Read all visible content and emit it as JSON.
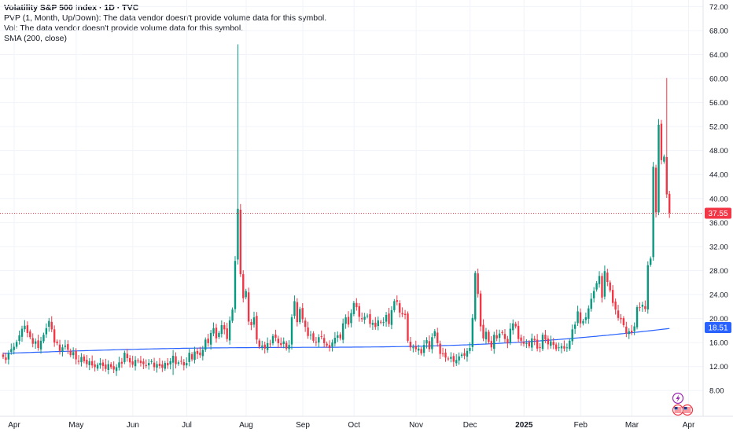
{
  "legend": {
    "title": "Volatility S&P 500 Index · 1D · TVC",
    "pvp": "PVP (1, Month, Up/Down): The data vendor doesn't provide volume data for this symbol.",
    "vol": "Vol: The data vendor doesn't provide volume data for this symbol.",
    "sma": "SMA (200, close)"
  },
  "icons": {
    "flash": "lightning-icon",
    "flags": "us-flag-icon"
  },
  "chart_data": {
    "type": "candlestick",
    "title": "Volatility S&P 500 Index · 1D · TVC",
    "y_ticks": [
      8,
      12,
      16,
      20,
      24,
      28,
      32,
      36,
      40,
      44,
      48,
      52,
      56,
      60,
      64,
      68,
      72
    ],
    "y_tick_labels": [
      "8.00",
      "12.00",
      "16.00",
      "20.00",
      "24.00",
      "28.00",
      "32.00",
      "36.00",
      "40.00",
      "44.00",
      "48.00",
      "52.00",
      "56.00",
      "60.00",
      "64.00",
      "68.00",
      "72.00"
    ],
    "ylim": [
      6.2,
      72.7
    ],
    "x_labels": [
      {
        "label": "Apr",
        "t": 0,
        "bold": false
      },
      {
        "label": "May",
        "t": 23,
        "bold": false
      },
      {
        "label": "Jun",
        "t": 44,
        "bold": false
      },
      {
        "label": "Jul",
        "t": 64,
        "bold": false
      },
      {
        "label": "Aug",
        "t": 86,
        "bold": false
      },
      {
        "label": "Sep",
        "t": 107,
        "bold": false
      },
      {
        "label": "Oct",
        "t": 126,
        "bold": false
      },
      {
        "label": "Nov",
        "t": 149,
        "bold": false
      },
      {
        "label": "Dec",
        "t": 169,
        "bold": false
      },
      {
        "label": "2025",
        "t": 189,
        "bold": true
      },
      {
        "label": "Feb",
        "t": 210,
        "bold": false
      },
      {
        "label": "Mar",
        "t": 229,
        "bold": false
      },
      {
        "label": "Apr",
        "t": 250,
        "bold": false
      }
    ],
    "last_price": 37.55,
    "last_price_label": "37.55",
    "sma_value": 18.51,
    "sma_label": "18.51",
    "colors": {
      "up": "#089981",
      "down": "#f23645",
      "sma": "#2962ff",
      "price_badge": "#f23645",
      "sma_badge": "#2962ff",
      "grid": "#f0f3fa"
    },
    "series_close": [
      13.6,
      13.1,
      14.2,
      14.9,
      15.3,
      16.1,
      17.2,
      18.3,
      18.8,
      17.6,
      16.9,
      15.8,
      16.2,
      15.1,
      16.3,
      17.3,
      18.4,
      19.6,
      18.2,
      16.0,
      15.9,
      14.6,
      15.2,
      15.5,
      14.8,
      13.9,
      14.4,
      13.2,
      12.8,
      13.6,
      12.9,
      12.4,
      12.9,
      12.2,
      11.9,
      12.3,
      12.6,
      12.1,
      11.6,
      12.4,
      11.9,
      11.5,
      11.9,
      12.7,
      12.5,
      14.3,
      13.4,
      12.7,
      12.3,
      13.1,
      12.9,
      12.6,
      12.4,
      12.2,
      12.6,
      12.9,
      11.9,
      12.4,
      12.1,
      11.8,
      12.6,
      12.2,
      12.9,
      13.8,
      12.4,
      12.7,
      12.9,
      12.2,
      12.6,
      14.3,
      13.2,
      14.5,
      14.1,
      13.9,
      14.8,
      16.5,
      15.9,
      17.6,
      18.4,
      16.7,
      17.6,
      18.9,
      18.2,
      16.6,
      19.7,
      21.5,
      29.6,
      38.3,
      27.4,
      23.4,
      24.6,
      19.5,
      18.9,
      20.2,
      16.5,
      15.3,
      15.5,
      15.0,
      15.9,
      15.8,
      17.1,
      16.8,
      15.9,
      15.6,
      16.2,
      15.0,
      15.6,
      20.2,
      22.9,
      19.4,
      21.6,
      19.9,
      18.6,
      17.1,
      17.3,
      16.3,
      16.0,
      16.9,
      17.0,
      15.9,
      15.5,
      15.1,
      16.0,
      16.8,
      17.2,
      16.7,
      19.2,
      20.2,
      19.0,
      20.9,
      22.6,
      21.9,
      20.3,
      19.9,
      20.3,
      20.5,
      19.1,
      19.3,
      18.6,
      19.7,
      19.4,
      19.4,
      20.6,
      19.1,
      21.4,
      22.9,
      22.8,
      21.0,
      20.7,
      20.6,
      16.3,
      15.2,
      15.2,
      14.9,
      15.0,
      14.2,
      15.6,
      16.4,
      14.9,
      16.9,
      17.9,
      15.9,
      14.1,
      14.1,
      13.5,
      13.3,
      13.6,
      12.8,
      13.1,
      13.7,
      14.0,
      13.8,
      14.6,
      15.1,
      20.1,
      27.6,
      24.1,
      18.7,
      16.7,
      17.8,
      16.1,
      15.2,
      17.3,
      16.7,
      17.5,
      17.6,
      16.6,
      15.9,
      18.3,
      19.2,
      18.7,
      16.6,
      16.3,
      15.8,
      15.9,
      15.4,
      16.7,
      16.4,
      15.0,
      15.1,
      17.3,
      16.5,
      15.7,
      16.2,
      15.6,
      14.9,
      15.2,
      15.4,
      15.0,
      15.2,
      16.3,
      18.2,
      19.0,
      21.2,
      19.2,
      19.6,
      20.2,
      21.7,
      23.3,
      24.6,
      25.9,
      27.1,
      23.5,
      27.9,
      26.1,
      24.7,
      22.6,
      21.5,
      20.1,
      19.9,
      18.9,
      17.5,
      17.9,
      17.7,
      18.7,
      21.9,
      21.8,
      22.3,
      21.6,
      28.9,
      30.0,
      45.3,
      37.7,
      52.3,
      46.4,
      47.0,
      40.7,
      37.6
    ],
    "spikes": [
      {
        "t": 87,
        "high": 65.7
      },
      {
        "t": 246,
        "high": 60.1
      },
      {
        "t": 63,
        "low": 10.6
      }
    ],
    "sma_start": 14.2,
    "sma_end": 18.51
  }
}
